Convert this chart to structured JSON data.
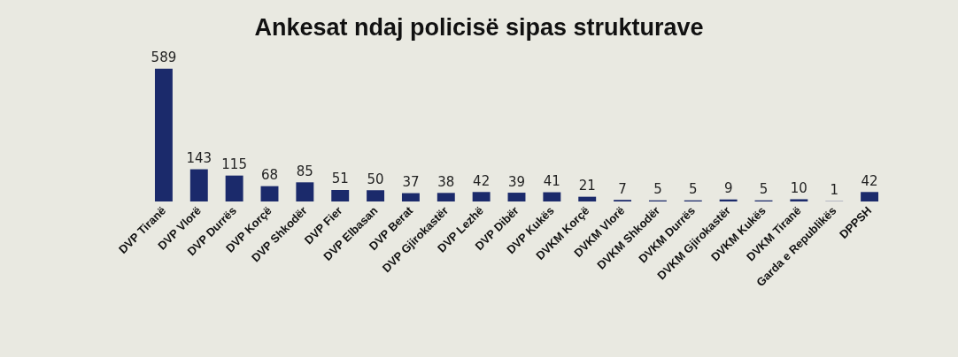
{
  "chart_data": {
    "type": "bar",
    "title": "Ankesat ndaj policisë sipas strukturave",
    "categories": [
      "DVP Tiranë",
      "DVP Vlorë",
      "DVP Durrës",
      "DVP Korçë",
      "DVP Shkodër",
      "DVP Fier",
      "DVP Elbasan",
      "DVP Berat",
      "DVP Gjirokastër",
      "DVP Lezhë",
      "DVP Dibër",
      "DVP Kukës",
      "DVKM Korçë",
      "DVKM Vlorë",
      "DVKM Shkodër",
      "DVKM Durrës",
      "DVKM Gjirokastër",
      "DVKM Kukës",
      "DVKM Tiranë",
      "Garda e Republikës",
      "DPPSH"
    ],
    "values": [
      589,
      143,
      115,
      68,
      85,
      51,
      50,
      37,
      38,
      42,
      39,
      41,
      21,
      7,
      5,
      5,
      9,
      5,
      10,
      1,
      42
    ],
    "color": "#1b2a6b",
    "data_labels": true
  }
}
